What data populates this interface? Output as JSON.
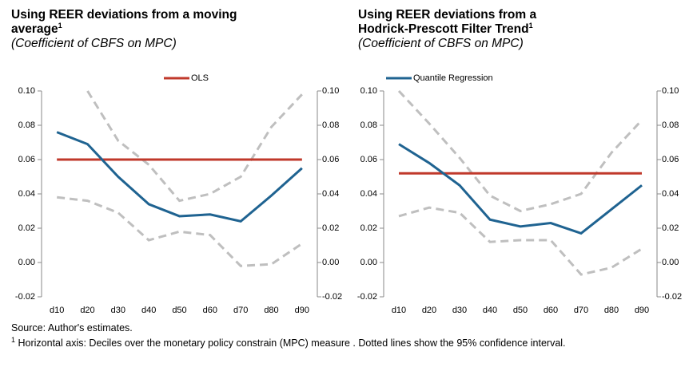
{
  "chart_data": [
    {
      "type": "line",
      "title": [
        "Using REER deviations from a moving",
        "average"
      ],
      "title_note": "1",
      "subtitle": "(Coefficient  of CBFS on MPC)",
      "categories": [
        "d10",
        "d20",
        "d30",
        "d40",
        "d50",
        "d60",
        "d70",
        "d80",
        "d90"
      ],
      "series": [
        {
          "color": "#bfbfbf",
          "dash": true,
          "values": [
            null,
            0.1,
            0.071,
            0.057,
            0.036,
            0.04,
            0.05,
            0.079,
            0.098
          ]
        },
        {
          "color": "#bfbfbf",
          "dash": true,
          "values": [
            0.038,
            0.036,
            0.029,
            0.013,
            0.018,
            0.016,
            -0.002,
            -0.001,
            0.011
          ]
        },
        {
          "name": "OLS",
          "color": "#c0392b",
          "legend": true,
          "values": [
            0.06,
            0.06,
            0.06,
            0.06,
            0.06,
            0.06,
            0.06,
            0.06,
            0.06
          ]
        },
        {
          "name": "Quantile Regression",
          "color": "#1f6391",
          "values": [
            0.076,
            0.069,
            0.05,
            0.034,
            0.027,
            0.028,
            0.024,
            0.039,
            0.055
          ]
        }
      ],
      "ylim": [
        -0.02,
        0.1
      ],
      "yticks": [
        {
          "value": -0.02,
          "label": "-0.02"
        },
        {
          "value": 0,
          "label": "0.00"
        },
        {
          "value": 0.02,
          "label": "0.02"
        },
        {
          "value": 0.04,
          "label": "0.04"
        },
        {
          "value": 0.06,
          "label": "0.06"
        },
        {
          "value": 0.08,
          "label": "0.08"
        },
        {
          "value": 0.1,
          "label": "0.10"
        }
      ],
      "y2lim": [
        -0.02,
        0.1
      ],
      "y2ticks": [
        {
          "value": -0.02,
          "label": "-0.02"
        },
        {
          "value": 0,
          "label": "0.00"
        },
        {
          "value": 0.02,
          "label": "0.02"
        },
        {
          "value": 0.04,
          "label": "0.04"
        },
        {
          "value": 0.06,
          "label": "0.06"
        },
        {
          "value": 0.08,
          "label": "0.08"
        },
        {
          "value": 0.1,
          "label": "0.10"
        }
      ]
    },
    {
      "type": "line",
      "title": [
        "Using REER deviations from a",
        "Hodrick-Prescott Filter Trend"
      ],
      "title_note": "1",
      "subtitle": "(Coefficient  of CBFS on MPC)",
      "categories": [
        "d10",
        "d20",
        "d30",
        "d40",
        "d50",
        "d60",
        "d70",
        "d80",
        "d90"
      ],
      "series": [
        {
          "color": "#bfbfbf",
          "dash": true,
          "values": [
            0.1,
            0.081,
            0.061,
            0.039,
            0.03,
            0.034,
            0.04,
            0.064,
            0.083
          ]
        },
        {
          "color": "#bfbfbf",
          "dash": true,
          "values": [
            0.027,
            0.032,
            0.029,
            0.012,
            0.013,
            0.013,
            -0.007,
            -0.003,
            0.008
          ]
        },
        {
          "name": "OLS",
          "color": "#c0392b",
          "values": [
            0.052,
            0.052,
            0.052,
            0.052,
            0.052,
            0.052,
            0.052,
            0.052,
            0.052
          ]
        },
        {
          "name": "Quantile Regression",
          "color": "#1f6391",
          "legend": true,
          "values": [
            0.069,
            0.058,
            0.045,
            0.025,
            0.021,
            0.023,
            0.017,
            0.031,
            0.045
          ]
        }
      ],
      "ylim": [
        -0.02,
        0.1
      ],
      "yticks": [
        {
          "value": -0.02,
          "label": "-0.02"
        },
        {
          "value": 0,
          "label": "0.00"
        },
        {
          "value": 0.02,
          "label": "0.02"
        },
        {
          "value": 0.04,
          "label": "0.04"
        },
        {
          "value": 0.06,
          "label": "0.06"
        },
        {
          "value": 0.08,
          "label": "0.08"
        },
        {
          "value": 0.1,
          "label": "0.10"
        }
      ],
      "y2lim": [
        -0.02,
        0.1
      ],
      "y2ticks": [
        {
          "value": -0.02,
          "label": "-0.02"
        },
        {
          "value": 0,
          "label": "0.00"
        },
        {
          "value": 0.02,
          "label": "0.02"
        },
        {
          "value": 0.04,
          "label": "0.04"
        },
        {
          "value": 0.06,
          "label": "0.06"
        },
        {
          "value": 0.08,
          "label": "0.08"
        },
        {
          "value": 0.1,
          "label": "0.10"
        }
      ]
    }
  ],
  "notes": {
    "source": "Source: Author's estimates.",
    "marker": "1",
    "text": "Horizontal axis:  Deciles over the monetary policy constrain (MPC) measure . Dotted lines show the 95% confidence interval."
  }
}
